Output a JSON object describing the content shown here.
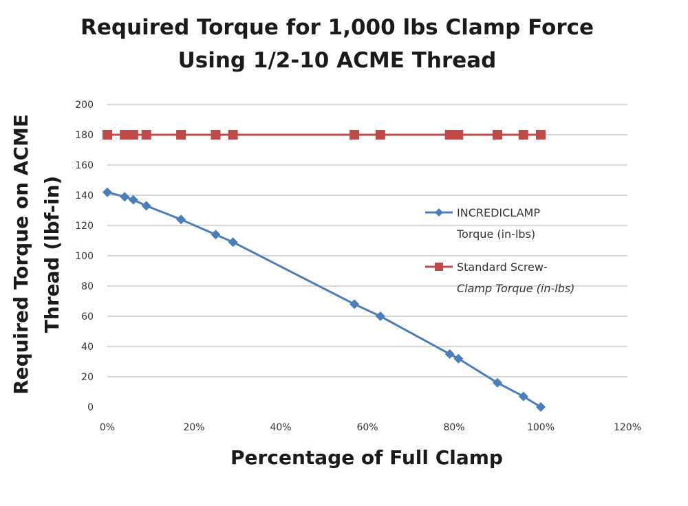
{
  "chart_data": {
    "type": "line",
    "title": [
      "Required Torque for 1,000 lbs Clamp Force",
      "Using 1/2-10 ACME Thread"
    ],
    "xlabel": "Percentage of Full Clamp",
    "ylabel": [
      "Required Torque on ACME",
      "Thread (lbf-in)"
    ],
    "xlim": [
      0,
      1.2
    ],
    "ylim": [
      0,
      200
    ],
    "x_ticks": [
      0,
      0.2,
      0.4,
      0.6,
      0.8,
      1.0,
      1.2
    ],
    "x_tick_labels": [
      "0%",
      "20%",
      "40%",
      "60%",
      "80%",
      "100%",
      "120%"
    ],
    "y_ticks": [
      0,
      20,
      40,
      60,
      80,
      100,
      120,
      140,
      160,
      180,
      200
    ],
    "y_tick_labels": [
      "0",
      "20",
      "40",
      "60",
      "80",
      "100",
      "120",
      "140",
      "160",
      "180",
      "200"
    ],
    "grid": "horizontal",
    "legend_position": "right",
    "series": [
      {
        "legend_lines": [
          "INCREDICLAMP",
          "Torque (in-lbs)"
        ],
        "color": "#4a7ebb",
        "marker": "diamond",
        "x": [
          0,
          0.04,
          0.06,
          0.09,
          0.17,
          0.25,
          0.29,
          0.57,
          0.63,
          0.79,
          0.81,
          0.9,
          0.96,
          1.0
        ],
        "y": [
          142,
          139,
          137,
          133,
          124,
          114,
          109,
          68,
          60,
          35,
          32,
          16,
          7,
          0
        ]
      },
      {
        "legend_lines": [
          "Standard Screw-",
          "Clamp Torque (in-lbs)"
        ],
        "color": "#be4b48",
        "marker": "square",
        "x": [
          0,
          0.04,
          0.06,
          0.09,
          0.17,
          0.25,
          0.29,
          0.57,
          0.63,
          0.79,
          0.81,
          0.9,
          0.96,
          1.0
        ],
        "y": [
          180,
          180,
          180,
          180,
          180,
          180,
          180,
          180,
          180,
          180,
          180,
          180,
          180,
          180
        ]
      }
    ]
  }
}
